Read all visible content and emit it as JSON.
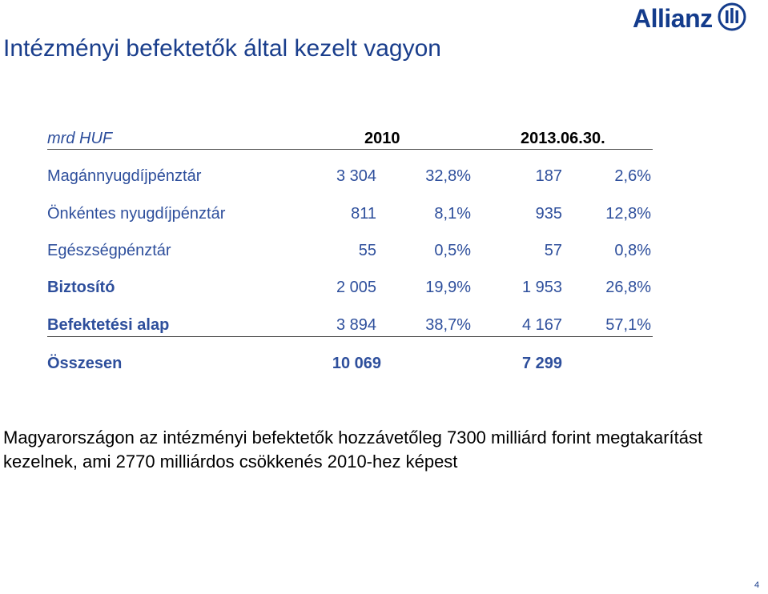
{
  "title": "Intézményi befektetők által kezelt vagyon",
  "logo": {
    "text": "Allianz",
    "icon": "allianz-eagle-icon",
    "color": "#143c8c"
  },
  "table": {
    "unit": "mrd HUF",
    "year1": "2010",
    "year2": "2013.06.30.",
    "rows": [
      {
        "name": "Magánnyugdíjpénztár",
        "v1": "3 304",
        "p1": "32,8%",
        "v2": "187",
        "p2": "2,6%"
      },
      {
        "name": "Önkéntes nyugdíjpénztár",
        "v1": "811",
        "p1": "8,1%",
        "v2": "935",
        "p2": "12,8%"
      },
      {
        "name": "Egészségpénztár",
        "v1": "55",
        "p1": "0,5%",
        "v2": "57",
        "p2": "0,8%"
      },
      {
        "name": "Biztosító",
        "v1": "2 005",
        "p1": "19,9%",
        "v2": "1 953",
        "p2": "26,8%"
      },
      {
        "name": "Befektetési alap",
        "v1": "3 894",
        "p1": "38,7%",
        "v2": "4 167",
        "p2": "57,1%"
      }
    ],
    "total": {
      "name": "Összesen",
      "v1": "10 069",
      "v2": "7 299"
    }
  },
  "summary": "Magyarországon az intézményi befektetők hozzávetőleg 7300 milliárd forint megtakarítást kezelnek, ami 2770 milliárdos csökkenés 2010-hez képest",
  "page_number": "4",
  "colors": {
    "title": "#1a3e8c",
    "table_text": "#2e4f9c",
    "text": "#000000"
  }
}
